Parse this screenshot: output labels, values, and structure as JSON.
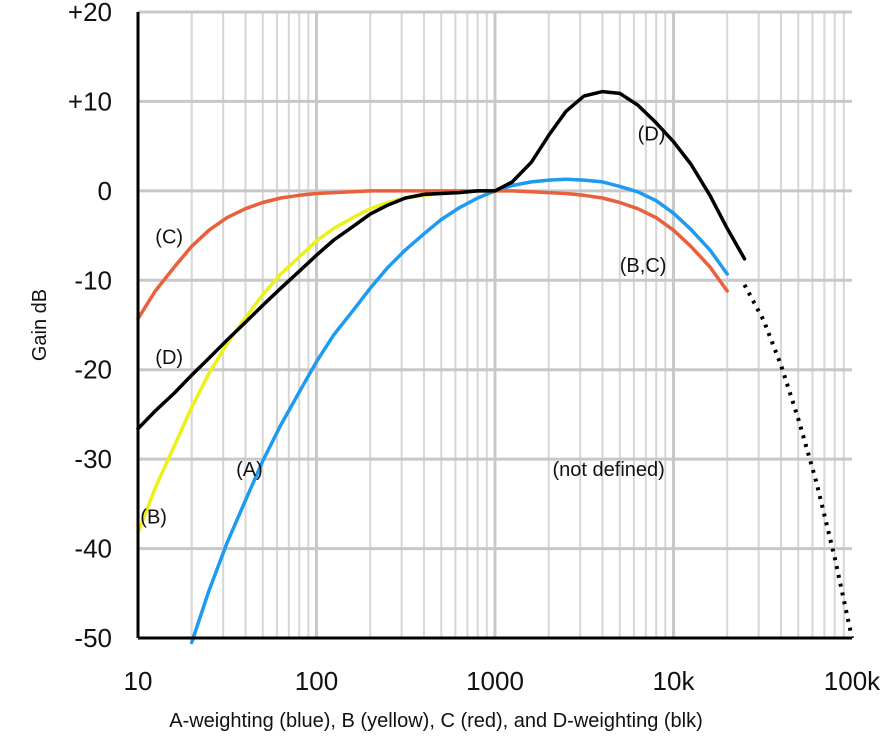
{
  "chart_data": {
    "type": "line",
    "title": "",
    "xlabel": "A-weighting (blue), B (yellow), C (red), and D-weighting (blk)",
    "ylabel": "Gain dB",
    "xscale": "log",
    "xlim": [
      10,
      100000
    ],
    "ylim": [
      -50,
      20
    ],
    "grid": true,
    "y_ticks": [
      {
        "value": 20,
        "label": "+20"
      },
      {
        "value": 10,
        "label": "+10"
      },
      {
        "value": 0,
        "label": "0"
      },
      {
        "value": -10,
        "label": "-10"
      },
      {
        "value": -20,
        "label": "-20"
      },
      {
        "value": -30,
        "label": "-30"
      },
      {
        "value": -40,
        "label": "-40"
      },
      {
        "value": -50,
        "label": "-50"
      }
    ],
    "x_ticks": [
      {
        "value": 10,
        "label": "10"
      },
      {
        "value": 100,
        "label": "100"
      },
      {
        "value": 1000,
        "label": "1000"
      },
      {
        "value": 10000,
        "label": "10k"
      },
      {
        "value": 100000,
        "label": "100k"
      }
    ],
    "series": [
      {
        "name": "A-weighting",
        "label": "(A)",
        "color": "#1e9bf0",
        "points": [
          [
            20,
            -50.5
          ],
          [
            25,
            -44.7
          ],
          [
            31.5,
            -39.4
          ],
          [
            40,
            -34.6
          ],
          [
            50,
            -30.2
          ],
          [
            63,
            -26.2
          ],
          [
            80,
            -22.5
          ],
          [
            100,
            -19.1
          ],
          [
            125,
            -16.1
          ],
          [
            160,
            -13.4
          ],
          [
            200,
            -10.9
          ],
          [
            250,
            -8.6
          ],
          [
            315,
            -6.6
          ],
          [
            400,
            -4.8
          ],
          [
            500,
            -3.2
          ],
          [
            630,
            -1.9
          ],
          [
            800,
            -0.8
          ],
          [
            1000,
            0
          ],
          [
            1250,
            0.6
          ],
          [
            1600,
            1.0
          ],
          [
            2000,
            1.2
          ],
          [
            2500,
            1.3
          ],
          [
            3150,
            1.2
          ],
          [
            4000,
            1.0
          ],
          [
            5000,
            0.5
          ],
          [
            6300,
            -0.1
          ],
          [
            8000,
            -1.1
          ],
          [
            10000,
            -2.5
          ],
          [
            12500,
            -4.3
          ],
          [
            16000,
            -6.6
          ],
          [
            20000,
            -9.3
          ]
        ]
      },
      {
        "name": "B-weighting",
        "label": "(B)",
        "color": "#eaf21a",
        "points": [
          [
            10,
            -38.2
          ],
          [
            12.5,
            -33.2
          ],
          [
            16,
            -28.5
          ],
          [
            20,
            -24.2
          ],
          [
            25,
            -20.4
          ],
          [
            31.5,
            -17.1
          ],
          [
            40,
            -14.2
          ],
          [
            50,
            -11.6
          ],
          [
            63,
            -9.3
          ],
          [
            80,
            -7.4
          ],
          [
            100,
            -5.6
          ],
          [
            125,
            -4.2
          ],
          [
            160,
            -3.0
          ],
          [
            200,
            -2.0
          ],
          [
            250,
            -1.3
          ],
          [
            315,
            -0.8
          ],
          [
            400,
            -0.5
          ],
          [
            500,
            -0.3
          ],
          [
            630,
            -0.1
          ],
          [
            800,
            0
          ],
          [
            1000,
            0
          ]
        ]
      },
      {
        "name": "C-weighting",
        "label": "(C)",
        "color": "#e8603c",
        "points": [
          [
            10,
            -14.3
          ],
          [
            12.5,
            -11.2
          ],
          [
            16,
            -8.5
          ],
          [
            20,
            -6.2
          ],
          [
            25,
            -4.4
          ],
          [
            31.5,
            -3.0
          ],
          [
            40,
            -2.0
          ],
          [
            50,
            -1.3
          ],
          [
            63,
            -0.8
          ],
          [
            80,
            -0.5
          ],
          [
            100,
            -0.3
          ],
          [
            125,
            -0.2
          ],
          [
            160,
            -0.1
          ],
          [
            200,
            0
          ],
          [
            250,
            0
          ],
          [
            315,
            0
          ],
          [
            400,
            0
          ],
          [
            500,
            0
          ],
          [
            630,
            0
          ],
          [
            800,
            0
          ],
          [
            1000,
            0
          ],
          [
            1250,
            0
          ],
          [
            1600,
            -0.1
          ],
          [
            2000,
            -0.2
          ],
          [
            2500,
            -0.3
          ],
          [
            3150,
            -0.5
          ],
          [
            4000,
            -0.8
          ],
          [
            5000,
            -1.3
          ],
          [
            6300,
            -2.0
          ],
          [
            8000,
            -3.0
          ],
          [
            10000,
            -4.4
          ],
          [
            12500,
            -6.2
          ],
          [
            16000,
            -8.5
          ],
          [
            20000,
            -11.2
          ]
        ]
      },
      {
        "name": "D-weighting",
        "label": "(D)",
        "color": "#000000",
        "points": [
          [
            10,
            -26.6
          ],
          [
            12.5,
            -24.6
          ],
          [
            16,
            -22.6
          ],
          [
            20,
            -20.6
          ],
          [
            25,
            -18.7
          ],
          [
            31.5,
            -16.7
          ],
          [
            40,
            -14.7
          ],
          [
            50,
            -12.8
          ],
          [
            63,
            -10.9
          ],
          [
            80,
            -9.0
          ],
          [
            100,
            -7.2
          ],
          [
            125,
            -5.5
          ],
          [
            160,
            -4.0
          ],
          [
            200,
            -2.6
          ],
          [
            250,
            -1.6
          ],
          [
            315,
            -0.8
          ],
          [
            400,
            -0.4
          ],
          [
            500,
            -0.3
          ],
          [
            630,
            -0.2
          ],
          [
            800,
            0
          ],
          [
            1000,
            0
          ],
          [
            1250,
            1.0
          ],
          [
            1600,
            3.2
          ],
          [
            2000,
            6.2
          ],
          [
            2500,
            8.9
          ],
          [
            3150,
            10.6
          ],
          [
            4000,
            11.1
          ],
          [
            5000,
            10.9
          ],
          [
            6300,
            9.6
          ],
          [
            8000,
            7.6
          ],
          [
            10000,
            5.5
          ],
          [
            12500,
            3.0
          ],
          [
            16000,
            -0.5
          ],
          [
            20000,
            -4.2
          ],
          [
            25000,
            -7.6
          ]
        ]
      },
      {
        "name": "not defined",
        "label": "(not defined)",
        "color": "#000000",
        "dashed": true,
        "points": [
          [
            25000,
            -10.5
          ],
          [
            32000,
            -14.5
          ],
          [
            40000,
            -19.5
          ],
          [
            50000,
            -25.5
          ],
          [
            63000,
            -32.5
          ],
          [
            80000,
            -41
          ],
          [
            100000,
            -50
          ]
        ]
      }
    ],
    "annotations": [
      {
        "text": "(C)",
        "x": 12.5,
        "y": -5.1,
        "anchor": "start"
      },
      {
        "text": "(D)",
        "x": 12.5,
        "y": -18.6,
        "anchor": "start"
      },
      {
        "text": "(A)",
        "x": 50,
        "y": -31.1,
        "anchor": "end"
      },
      {
        "text": "(B)",
        "x": 10.3,
        "y": -36.4,
        "anchor": "start"
      },
      {
        "text": "(D)",
        "x": 6300,
        "y": 6.4,
        "anchor": "start"
      },
      {
        "text": "(B,C)",
        "x": 5000,
        "y": -8.3,
        "anchor": "start"
      },
      {
        "text": "(not defined)",
        "x": 2100,
        "y": -31.1,
        "anchor": "start"
      }
    ]
  }
}
